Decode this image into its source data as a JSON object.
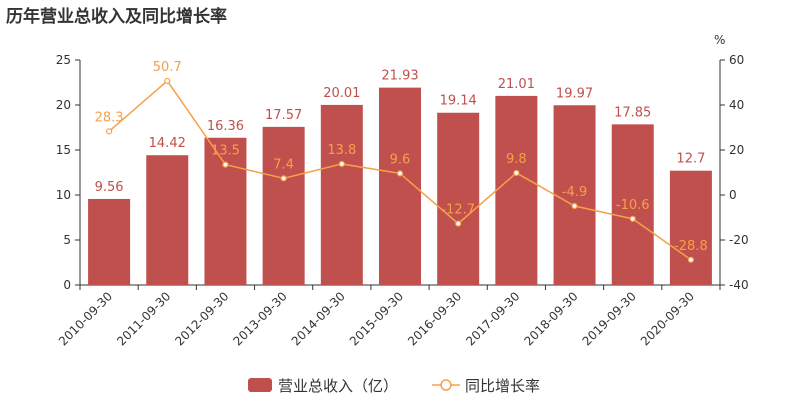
{
  "title": "历年营业总收入及同比增长率",
  "colors": {
    "bar": "#c0504d",
    "line": "#f5a04a",
    "axis": "#333333"
  },
  "chart_data": {
    "type": "bar",
    "title": "历年营业总收入及同比增长率",
    "categories": [
      "2010-09-30",
      "2011-09-30",
      "2012-09-30",
      "2013-09-30",
      "2014-09-30",
      "2015-09-30",
      "2016-09-30",
      "2017-09-30",
      "2018-09-30",
      "2019-09-30",
      "2020-09-30"
    ],
    "series": [
      {
        "name": "营业总收入（亿）",
        "type": "bar",
        "axis": "left",
        "values": [
          9.56,
          14.42,
          16.36,
          17.57,
          20.01,
          21.93,
          19.14,
          21.01,
          19.97,
          17.85,
          12.7
        ],
        "labels": [
          "9.56",
          "14.42",
          "16.36",
          "17.57",
          "20.01",
          "21.93",
          "19.14",
          "21.01",
          "19.97",
          "17.85",
          "12.7"
        ]
      },
      {
        "name": "同比增长率",
        "type": "line",
        "axis": "right",
        "values": [
          28.3,
          50.7,
          13.5,
          7.4,
          13.8,
          9.6,
          -12.7,
          9.8,
          -4.9,
          -10.6,
          -28.8
        ],
        "labels": [
          "28.3",
          "50.7",
          "13.5",
          "7.4",
          "13.8",
          "9.6",
          "-12.7",
          "9.8",
          "-4.9",
          "-10.6",
          "-28.8"
        ]
      }
    ],
    "y_left": {
      "min": 0,
      "max": 25,
      "ticks": [
        "0",
        "5",
        "10",
        "15",
        "20",
        "25"
      ]
    },
    "y_right": {
      "min": -40,
      "max": 60,
      "ticks": [
        "-40",
        "-20",
        "0",
        "20",
        "40",
        "60"
      ],
      "unit": "%"
    },
    "grid": false,
    "legend_position": "bottom"
  }
}
